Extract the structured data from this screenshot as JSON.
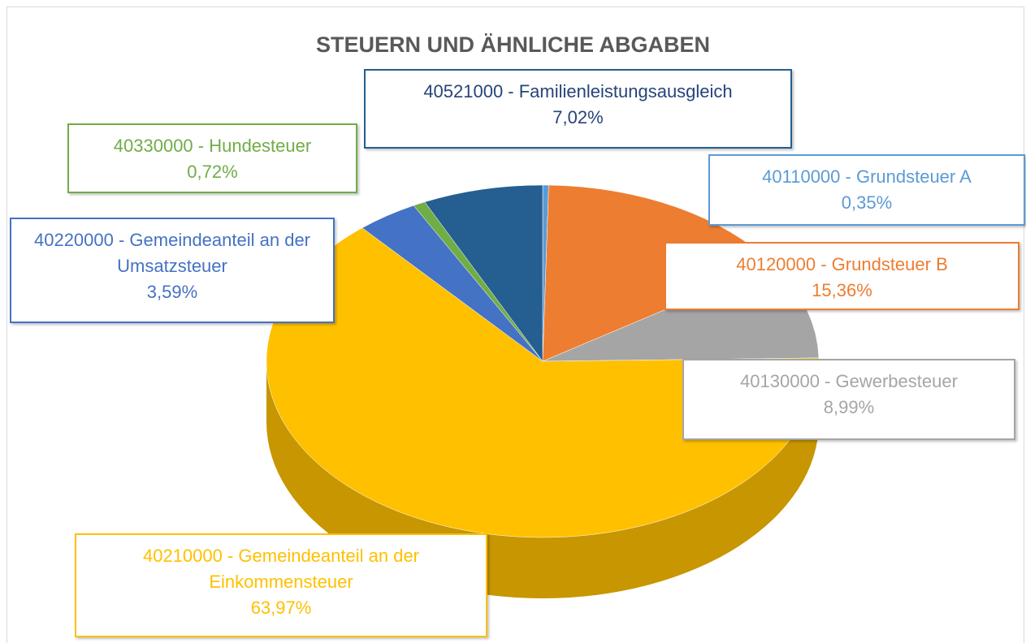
{
  "chart_data": {
    "type": "pie",
    "title": "STEUERN UND ÄHNLICHE ABGABEN",
    "categories": [
      "40110000 - Grundsteuer A",
      "40120000 - Grundsteuer B",
      "40130000 - Gewerbesteuer",
      "40210000 - Gemeindeanteil an der Einkommensteuer",
      "40220000 - Gemeindeanteil an der Umsatzsteuer",
      "40330000 - Hundesteuer",
      "40521000 - Familienleistungsausgleich"
    ],
    "values": [
      0.35,
      15.36,
      8.99,
      63.97,
      3.59,
      0.72,
      7.02
    ],
    "value_labels": [
      "0,35%",
      "15,36%",
      "8,99%",
      "63,97%",
      "3,59%",
      "0,72%",
      "7,02%"
    ],
    "colors": [
      "#5b9bd5",
      "#ed7d31",
      "#a5a5a5",
      "#ffc000",
      "#4472c4",
      "#70ad47",
      "#255e91"
    ]
  }
}
